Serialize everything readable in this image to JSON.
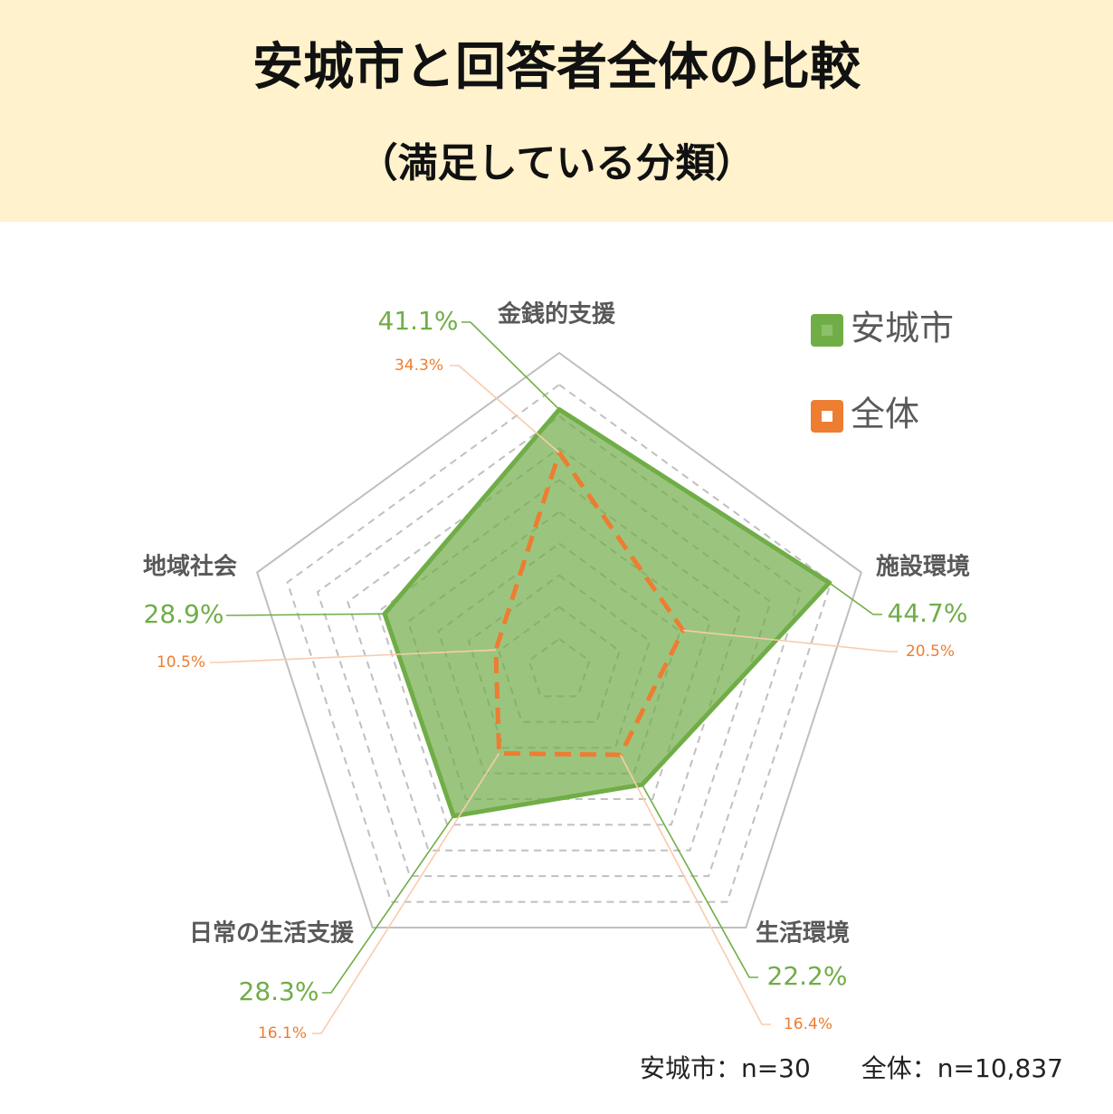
{
  "chart_data": {
    "type": "radar",
    "title": "安城市と回答者全体の比較",
    "subtitle": "（満足している分類）",
    "categories": [
      "金銭的支援",
      "施設環境",
      "生活環境",
      "日常の生活支援",
      "地域社会"
    ],
    "series": [
      {
        "name": "安城市",
        "color": "#70ad47",
        "values": [
          41.1,
          44.7,
          22.2,
          28.3,
          28.9
        ],
        "value_labels": [
          "41.1%",
          "44.7%",
          "22.2%",
          "28.3%",
          "28.9%"
        ]
      },
      {
        "name": "全体",
        "color": "#ed7d31",
        "values": [
          34.3,
          20.5,
          16.4,
          16.1,
          10.5
        ],
        "value_labels": [
          "34.3%",
          "20.5%",
          "16.4%",
          "16.1%",
          "10.5%"
        ]
      }
    ],
    "rlim": [
      0,
      50
    ],
    "rticks": [
      5,
      10,
      15,
      20,
      25,
      30,
      35,
      40,
      45,
      50
    ],
    "legend": "top-right",
    "note": "安城市：n=30　　全体：n=10,837"
  }
}
